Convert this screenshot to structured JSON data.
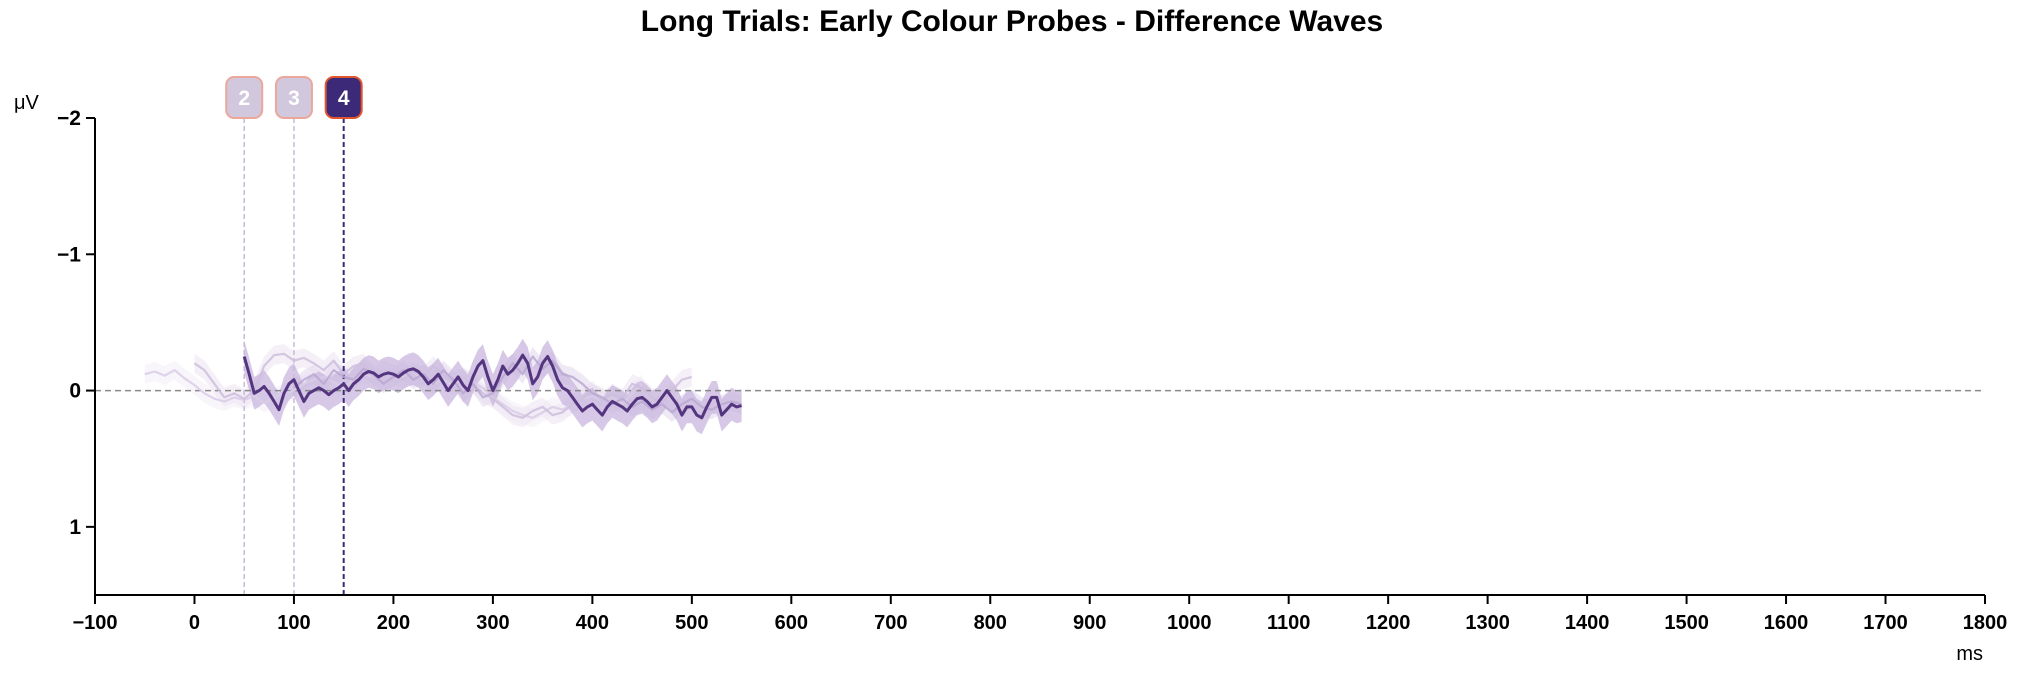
{
  "chart_data": {
    "type": "line",
    "title": "Long Trials: Early Colour Probes - Difference Waves",
    "y_unit": "μV",
    "x_unit": "ms",
    "xlim": [
      -100,
      1800
    ],
    "ylim": [
      1.5,
      -2
    ],
    "y_axis_inverted": true,
    "x_ticks": [
      {
        "value": -100,
        "label": "−100"
      },
      {
        "value": 0,
        "label": "0"
      },
      {
        "value": 100,
        "label": "100"
      },
      {
        "value": 200,
        "label": "200"
      },
      {
        "value": 300,
        "label": "300"
      },
      {
        "value": 400,
        "label": "400"
      },
      {
        "value": 500,
        "label": "500"
      },
      {
        "value": 600,
        "label": "600"
      },
      {
        "value": 700,
        "label": "700"
      },
      {
        "value": 800,
        "label": "800"
      },
      {
        "value": 900,
        "label": "900"
      },
      {
        "value": 1000,
        "label": "1000"
      },
      {
        "value": 1100,
        "label": "1100"
      },
      {
        "value": 1200,
        "label": "1200"
      },
      {
        "value": 1300,
        "label": "1300"
      },
      {
        "value": 1400,
        "label": "1400"
      },
      {
        "value": 1500,
        "label": "1500"
      },
      {
        "value": 1600,
        "label": "1600"
      },
      {
        "value": 1700,
        "label": "1700"
      },
      {
        "value": 1800,
        "label": "1800"
      }
    ],
    "y_ticks": [
      {
        "value": -2,
        "label": "−2"
      },
      {
        "value": -1,
        "label": "−1"
      },
      {
        "value": 0,
        "label": "0"
      },
      {
        "value": 1,
        "label": "1"
      }
    ],
    "zero_line": {
      "value": 0,
      "style": "dashed",
      "color": "#8a8a8a"
    },
    "probes": [
      {
        "label": "2",
        "time": 50,
        "highlighted": false
      },
      {
        "label": "3",
        "time": 100,
        "highlighted": false
      },
      {
        "label": "4",
        "time": 150,
        "highlighted": true
      }
    ],
    "series": [
      {
        "probe": "1",
        "highlighted": false,
        "color": "#d9cce6",
        "band_color": "#f3eef8",
        "x": [
          -50,
          -40,
          -30,
          -20,
          -10,
          0,
          10,
          20,
          30,
          40,
          50,
          60,
          70,
          80,
          90,
          100,
          110,
          120,
          130,
          140,
          150,
          160,
          170,
          180,
          190,
          200,
          210,
          220,
          230,
          240,
          250,
          260,
          270,
          280,
          290,
          300,
          310,
          320,
          330,
          340,
          350,
          360,
          370,
          380,
          390,
          400,
          410,
          420,
          430,
          440,
          450
        ],
        "y": [
          -0.12,
          -0.14,
          -0.11,
          -0.15,
          -0.09,
          -0.04,
          0.02,
          0.06,
          0.08,
          0.05,
          0.07,
          0.04,
          0.09,
          0.05,
          0.02,
          0.0,
          -0.05,
          -0.08,
          -0.1,
          -0.06,
          -0.02,
          -0.08,
          -0.12,
          -0.1,
          -0.14,
          -0.12,
          -0.1,
          -0.13,
          -0.09,
          -0.05,
          -0.08,
          -0.04,
          -0.1,
          -0.06,
          -0.02,
          0.05,
          0.1,
          0.15,
          0.18,
          0.2,
          0.16,
          0.12,
          0.14,
          0.1,
          0.06,
          0.04,
          0.08,
          0.05,
          0.1,
          0.02,
          -0.05
        ]
      },
      {
        "probe": "2",
        "highlighted": false,
        "color": "#cdbedd",
        "band_color": "#eee6f4",
        "x": [
          0,
          10,
          20,
          30,
          40,
          50,
          60,
          70,
          80,
          90,
          100,
          110,
          120,
          130,
          140,
          150,
          160,
          170,
          180,
          190,
          200,
          210,
          220,
          230,
          240,
          250,
          260,
          270,
          280,
          290,
          300,
          310,
          320,
          330,
          340,
          350,
          360,
          370,
          380,
          390,
          400,
          410,
          420,
          430,
          440,
          450,
          460,
          470,
          480,
          490,
          500
        ],
        "y": [
          -0.2,
          -0.15,
          -0.05,
          0.05,
          0.02,
          0.06,
          0.0,
          -0.18,
          -0.26,
          -0.27,
          -0.22,
          -0.24,
          -0.2,
          -0.15,
          -0.22,
          -0.12,
          -0.18,
          -0.2,
          -0.1,
          -0.15,
          -0.12,
          -0.08,
          -0.14,
          -0.1,
          -0.18,
          -0.12,
          -0.06,
          -0.1,
          -0.05,
          0.02,
          0.06,
          0.12,
          0.18,
          0.2,
          0.15,
          0.12,
          0.18,
          0.16,
          0.1,
          0.06,
          0.0,
          0.08,
          0.02,
          0.06,
          -0.05,
          -0.02,
          0.05,
          0.1,
          0.0,
          -0.08,
          -0.1
        ]
      },
      {
        "probe": "3",
        "highlighted": false,
        "color": "#bba8d2",
        "band_color": "#e4daee",
        "x": [
          100,
          110,
          120,
          130,
          140,
          150,
          160,
          170,
          180,
          190,
          200,
          210,
          220,
          230,
          240,
          250,
          260,
          270,
          280,
          290,
          300,
          310,
          320,
          330,
          340,
          350,
          360,
          370,
          380,
          390,
          400,
          410,
          420,
          430,
          440,
          450,
          460,
          470,
          480,
          490,
          500,
          510,
          520,
          530,
          540,
          550
        ],
        "y": [
          -0.02,
          -0.08,
          -0.12,
          -0.05,
          -0.15,
          -0.1,
          -0.08,
          -0.16,
          -0.12,
          -0.05,
          -0.1,
          -0.15,
          -0.08,
          -0.12,
          -0.05,
          -0.15,
          -0.08,
          0.02,
          -0.05,
          0.05,
          0.02,
          -0.1,
          -0.2,
          -0.12,
          -0.25,
          -0.16,
          -0.22,
          -0.12,
          -0.1,
          -0.05,
          0.02,
          0.05,
          0.1,
          0.06,
          0.12,
          0.08,
          0.14,
          0.1,
          0.16,
          0.1,
          0.06,
          0.12,
          0.14,
          0.1,
          0.08,
          0.1
        ]
      },
      {
        "probe": "4",
        "highlighted": true,
        "color": "#54357f",
        "band_color": "#c8b6dd",
        "x": [
          50,
          55,
          60,
          65,
          70,
          75,
          80,
          85,
          90,
          95,
          100,
          105,
          110,
          115,
          120,
          125,
          130,
          135,
          140,
          145,
          150,
          155,
          160,
          165,
          170,
          175,
          180,
          185,
          190,
          195,
          200,
          205,
          210,
          215,
          220,
          225,
          230,
          235,
          240,
          245,
          250,
          255,
          260,
          265,
          270,
          275,
          280,
          285,
          290,
          295,
          300,
          305,
          310,
          315,
          320,
          325,
          330,
          335,
          340,
          345,
          350,
          355,
          360,
          365,
          370,
          375,
          380,
          385,
          390,
          395,
          400,
          405,
          410,
          415,
          420,
          425,
          430,
          435,
          440,
          445,
          450,
          455,
          460,
          465,
          470,
          475,
          480,
          485,
          490,
          495,
          500,
          505,
          510,
          515,
          520,
          525,
          530,
          535,
          540,
          545,
          550
        ],
        "y": [
          -0.25,
          -0.12,
          0.02,
          0.0,
          -0.03,
          0.02,
          0.08,
          0.14,
          0.02,
          -0.05,
          -0.08,
          0.0,
          0.08,
          0.02,
          0.0,
          -0.02,
          0.0,
          0.03,
          0.0,
          -0.02,
          -0.05,
          0.0,
          -0.05,
          -0.08,
          -0.12,
          -0.14,
          -0.13,
          -0.1,
          -0.12,
          -0.13,
          -0.12,
          -0.1,
          -0.13,
          -0.15,
          -0.16,
          -0.14,
          -0.1,
          -0.05,
          -0.08,
          -0.12,
          -0.06,
          0.0,
          -0.05,
          -0.1,
          -0.04,
          0.0,
          -0.1,
          -0.18,
          -0.22,
          -0.1,
          0.0,
          -0.08,
          -0.18,
          -0.12,
          -0.15,
          -0.2,
          -0.26,
          -0.2,
          -0.05,
          -0.1,
          -0.2,
          -0.25,
          -0.18,
          -0.08,
          -0.02,
          0.0,
          0.05,
          0.1,
          0.15,
          0.12,
          0.1,
          0.14,
          0.18,
          0.12,
          0.08,
          0.1,
          0.12,
          0.15,
          0.1,
          0.06,
          0.05,
          0.08,
          0.12,
          0.1,
          0.05,
          0.0,
          0.05,
          0.1,
          0.18,
          0.12,
          0.12,
          0.18,
          0.2,
          0.12,
          0.05,
          0.05,
          0.18,
          0.14,
          0.1,
          0.12,
          0.11
        ]
      }
    ]
  }
}
